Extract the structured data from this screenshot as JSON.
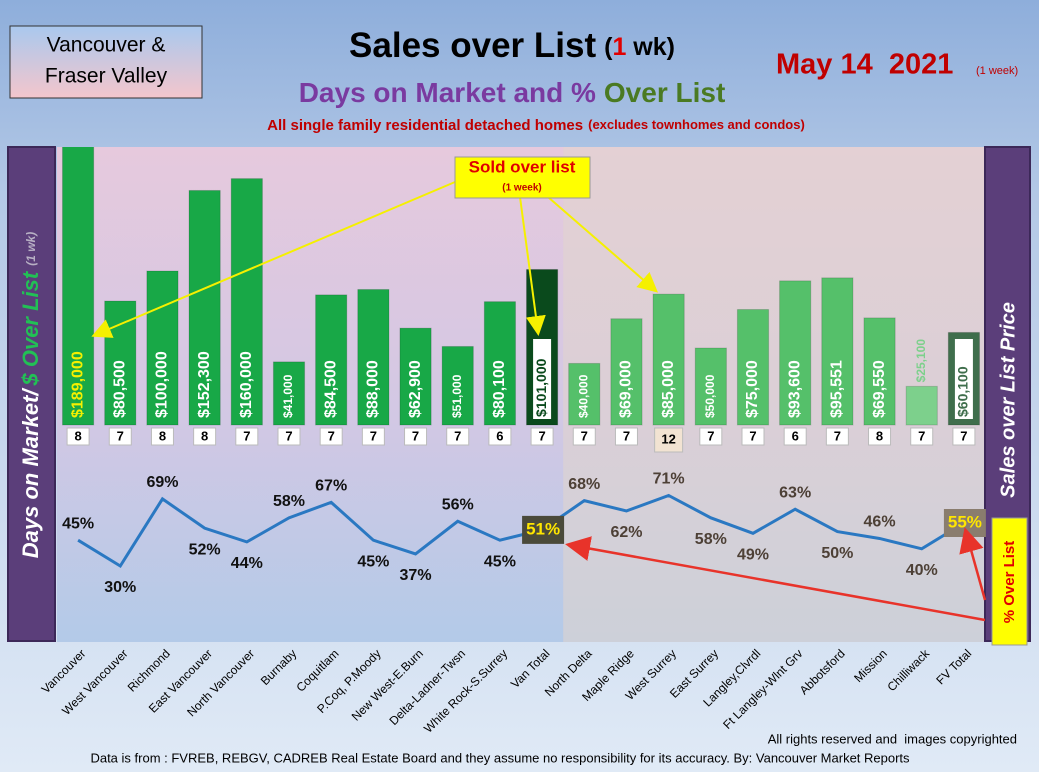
{
  "chart_data": {
    "type": "bar",
    "region_label": [
      "Vancouver &",
      "Fraser Valley"
    ],
    "title": "Sales over List",
    "title_suffix": [
      "(",
      "1",
      " wk)"
    ],
    "date": "May 14  2021",
    "date_note": "(1 week)",
    "subtitle": [
      "Days on Market and %",
      "Over List"
    ],
    "description": [
      "All single family residential detached homes",
      "(excludes townhomes and condos)"
    ],
    "left_axis_label": [
      "Days on Market/",
      "$ Over List",
      "(1 wk)"
    ],
    "right_axis_label": "Sales over List Price",
    "annotations": [
      {
        "text": "Sold over list",
        "note": "(1 week)"
      },
      {
        "text": "% Over List"
      }
    ],
    "categories": [
      "Vancouver",
      "West Vancouver",
      "Richmond",
      "East Vancouver",
      "North Vancouver",
      "Burnaby",
      "Coquitlam",
      "P.Coq, P.Moody",
      "New West-E.Burn",
      "Delta-Ladner-Twsn",
      "White Rock-S.Surrey",
      "Van Total",
      "North Delta",
      "Maple Ridge",
      "West Surrey",
      "East Surrey",
      "Langley,Clvrdl",
      "Ft Langley-Wlnt Grv",
      "Abbotsford",
      "Mission",
      "Chilliwack",
      "FV Total"
    ],
    "series": [
      {
        "values": [
          189000,
          80500,
          100000,
          152300,
          160000,
          41000,
          84500,
          88000,
          62900,
          51000,
          80100,
          101000,
          40000,
          69000,
          85000,
          50000,
          75000,
          93600,
          95551,
          69550,
          25100,
          60100
        ],
        "value_labels": [
          "$189,000",
          "$80,500",
          "$100,000",
          "$152,300",
          "$160,000",
          "$41,000",
          "$84,500",
          "$88,000",
          "$62,900",
          "$51,000",
          "$80,100",
          "$101,000",
          "$40,000",
          "$69,000",
          "$85,000",
          "$50,000",
          "$75,000",
          "$93,600",
          "$95,551",
          "$69,550",
          "$25,100",
          "$60,100"
        ],
        "colors": [
          "#18a847",
          "#18a847",
          "#18a847",
          "#18a847",
          "#18a847",
          "#18a847",
          "#18a847",
          "#18a847",
          "#18a847",
          "#18a847",
          "#18a847",
          "#0a4a1c",
          "#55c06a",
          "#55c06a",
          "#55c06a",
          "#55c06a",
          "#55c06a",
          "#55c06a",
          "#55c06a",
          "#55c06a",
          "#7dd08c",
          "#3f6e4c"
        ]
      },
      {
        "values": [
          8,
          7,
          8,
          8,
          7,
          7,
          7,
          7,
          7,
          7,
          6,
          7,
          7,
          7,
          12,
          7,
          7,
          6,
          7,
          8,
          7,
          7
        ]
      },
      {
        "type": "line",
        "color": "#2a78c2",
        "values": [
          45,
          30,
          69,
          52,
          44,
          58,
          67,
          45,
          37,
          56,
          45,
          51,
          68,
          62,
          71,
          58,
          49,
          63,
          50,
          46,
          40,
          55
        ],
        "value_labels": [
          "45%",
          "30%",
          "69%",
          "52%",
          "44%",
          "58%",
          "67%",
          "45%",
          "37%",
          "56%",
          "45%",
          "51%",
          "68%",
          "62%",
          "71%",
          "58%",
          "49%",
          "63%",
          "50%",
          "46%",
          "40%",
          "55%"
        ]
      }
    ],
    "footer": [
      "All rights reserved and  images copyrighted",
      "Data is from : FVREB, REBGV, CADREB Real Estate Board and they assume no responsibility for its accuracy. By: Vancouver Market Reports"
    ]
  }
}
